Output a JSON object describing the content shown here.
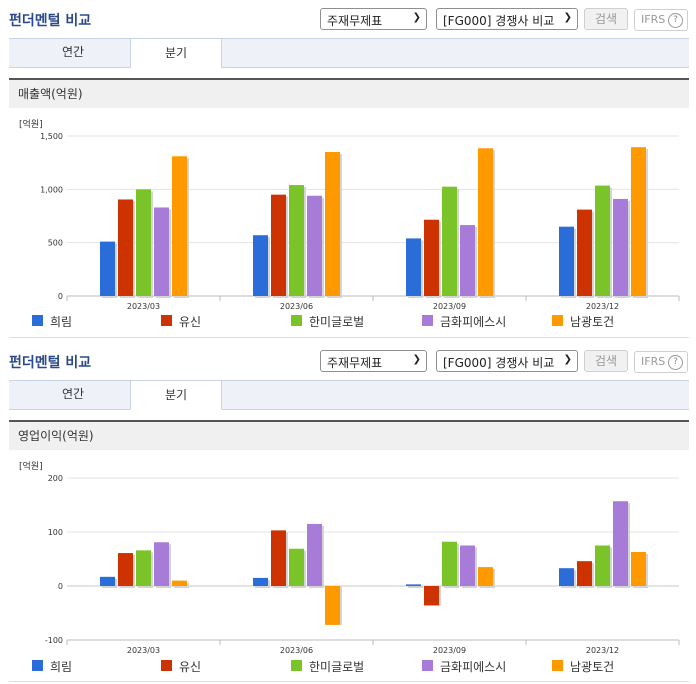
{
  "header": {
    "title": "펀더멘털 비교",
    "statement_select": "주재무제표",
    "compare_select": "[FG000] 경쟁사 비교",
    "search_label": "검색",
    "ifrs_label": "IFRS",
    "help_glyph": "?"
  },
  "tabs": [
    {
      "label": "연간",
      "active": false
    },
    {
      "label": "분기",
      "active": true
    }
  ],
  "colors": {
    "희림": "#2a6dd9",
    "유신": "#cc3300",
    "한미글로벌": "#7ac42a",
    "금화피에스시": "#a77bd8",
    "남광토건": "#ff9900"
  },
  "chart_data": [
    {
      "type": "bar",
      "title": "매출액(억원)",
      "unit_label": "[억원]",
      "categories": [
        "2023/03",
        "2023/06",
        "2023/09",
        "2023/12"
      ],
      "ylim": [
        0,
        1500
      ],
      "yticks": [
        0,
        500,
        1000,
        1500
      ],
      "ytick_labels": [
        "0",
        "500",
        "1,000",
        "1,500"
      ],
      "grid": true,
      "legend_position": "bottom",
      "series": [
        {
          "name": "희림",
          "color": "#2a6dd9",
          "values": [
            510,
            570,
            540,
            650
          ]
        },
        {
          "name": "유신",
          "color": "#cc3300",
          "values": [
            905,
            950,
            715,
            810
          ]
        },
        {
          "name": "한미글로벌",
          "color": "#7ac42a",
          "values": [
            1000,
            1040,
            1025,
            1035
          ]
        },
        {
          "name": "금화피에스시",
          "color": "#a77bd8",
          "values": [
            830,
            940,
            665,
            910
          ]
        },
        {
          "name": "남광토건",
          "color": "#ff9900",
          "values": [
            1310,
            1350,
            1385,
            1395
          ]
        }
      ]
    },
    {
      "type": "bar",
      "title": "영업이익(억원)",
      "unit_label": "[억원]",
      "categories": [
        "2023/03",
        "2023/06",
        "2023/09",
        "2023/12"
      ],
      "ylim": [
        -100,
        200
      ],
      "yticks": [
        -100,
        0,
        100,
        200
      ],
      "ytick_labels": [
        "-100",
        "0",
        "100",
        "200"
      ],
      "grid": true,
      "legend_position": "bottom",
      "series": [
        {
          "name": "희림",
          "color": "#2a6dd9",
          "values": [
            17,
            15,
            3,
            33
          ]
        },
        {
          "name": "유신",
          "color": "#cc3300",
          "values": [
            61,
            103,
            -36,
            46
          ]
        },
        {
          "name": "한미글로벌",
          "color": "#7ac42a",
          "values": [
            66,
            69,
            82,
            75
          ]
        },
        {
          "name": "금화피에스시",
          "color": "#a77bd8",
          "values": [
            81,
            115,
            75,
            157
          ]
        },
        {
          "name": "남광토건",
          "color": "#ff9900",
          "values": [
            10,
            -72,
            35,
            63
          ]
        }
      ]
    }
  ]
}
